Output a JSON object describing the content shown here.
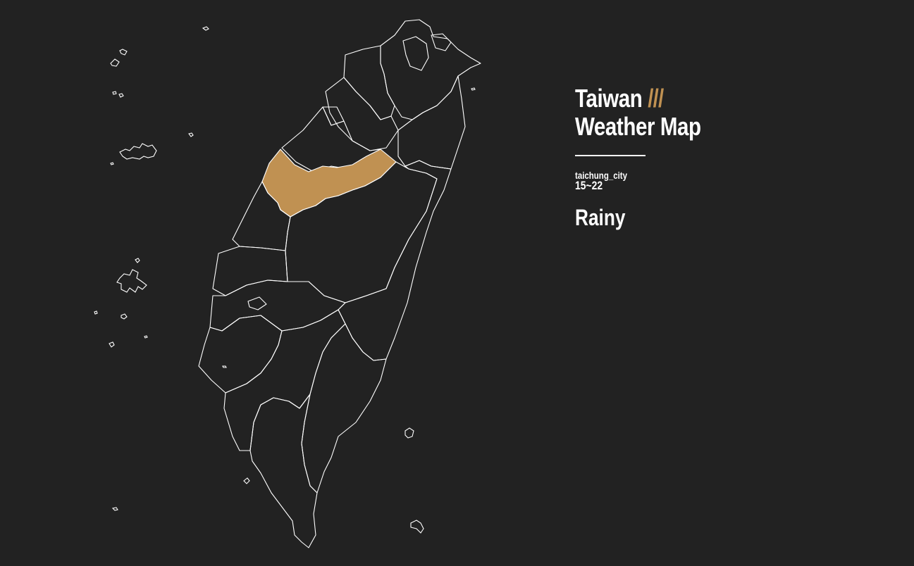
{
  "title": {
    "line1": "Taiwan",
    "accent": "///",
    "line2": "Weather Map"
  },
  "selected": {
    "city": "taichung_city",
    "temperature": "15~22",
    "weather": "Rainy"
  },
  "colors": {
    "background": "#222222",
    "highlight": "#c09152",
    "border": "#ffffff"
  }
}
